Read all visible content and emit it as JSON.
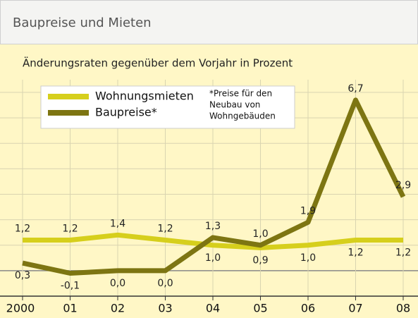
{
  "chart_data": {
    "type": "line",
    "title": "Baupreise und Mieten",
    "subtitle": "Änderungsraten gegenüber dem Vorjahr in Prozent",
    "categories": [
      "2000",
      "01",
      "02",
      "03",
      "04",
      "05",
      "06",
      "07",
      "08"
    ],
    "series": [
      {
        "name": "Wohnungsmieten",
        "color": "#d6cf1c",
        "values": [
          1.2,
          1.2,
          1.4,
          1.2,
          1.0,
          0.9,
          1.0,
          1.2,
          1.2
        ],
        "value_labels": [
          "1,2",
          "1,2",
          "1,4",
          "1,2",
          "1,0",
          "0,9",
          "1,0",
          "1,2",
          "1,2"
        ]
      },
      {
        "name": "Baupreise*",
        "color": "#7d7512",
        "values": [
          0.3,
          -0.1,
          0.0,
          0.0,
          1.3,
          1.0,
          1.9,
          6.7,
          2.9
        ],
        "value_labels": [
          "0,3",
          "-0,1",
          "0,0",
          "0,0",
          "1,3",
          "1,0",
          "1,9",
          "6,7",
          "2,9"
        ]
      }
    ],
    "note": [
      "*Preise für den",
      "Neubau von",
      "Wohngebäuden"
    ],
    "ylim": [
      -1,
      7.5
    ],
    "yticks": [
      0,
      1,
      2,
      3,
      4,
      5,
      6,
      7
    ],
    "grid": true,
    "legend": "top-left"
  }
}
